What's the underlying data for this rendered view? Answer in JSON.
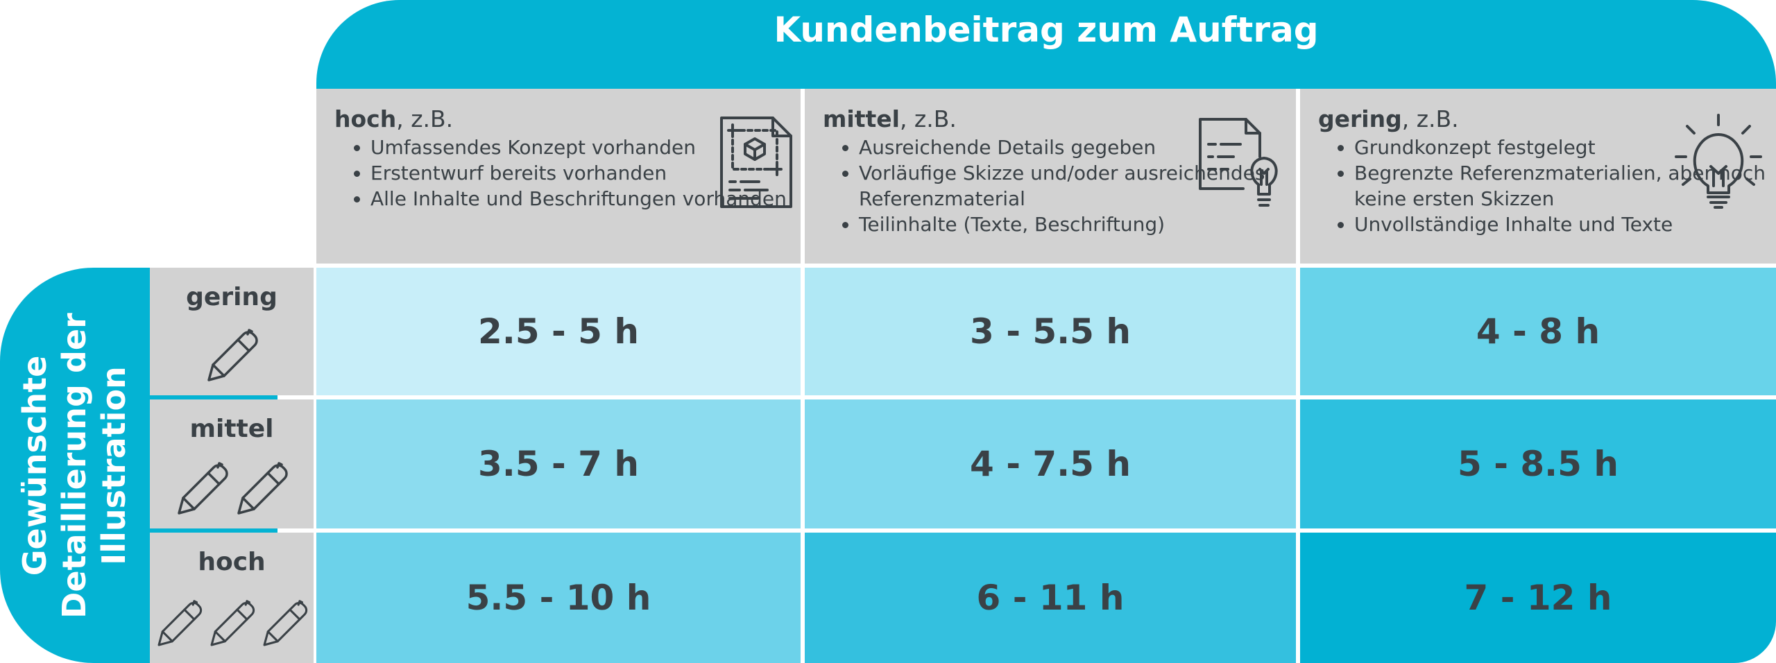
{
  "header": {
    "title": "Kundenbeitrag zum Auftrag"
  },
  "columns": [
    {
      "level": "hoch",
      "suffix": ", z.B.",
      "items": [
        "Umfassendes Konzept vorhanden",
        "Erstentwurf bereits vorhanden",
        "Alle Inhalte und Beschriftungen vorhanden"
      ],
      "icon": "blueprint-document-icon"
    },
    {
      "level": "mittel",
      "suffix": ", z.B.",
      "items": [
        "Ausreichende Details gegeben",
        "Vorläufige Skizze und/oder ausreichendes Referenzmaterial",
        "Teilinhalte (Texte, Beschriftung)"
      ],
      "icon": "document-lightbulb-icon"
    },
    {
      "level": "gering",
      "suffix": ", z.B.",
      "items": [
        "Grundkonzept festgelegt",
        "Begrenzte Referenzmaterialien, aber noch keine ersten Skizzen",
        "Unvollständige Inhalte und Texte"
      ],
      "icon": "lightbulb-icon"
    }
  ],
  "side_label": {
    "line1": "Gewünschte",
    "line2": "Detaillierung der",
    "line3": "Illustration"
  },
  "rows": [
    {
      "label": "gering",
      "pencils": 1,
      "icon": "pencil-icon"
    },
    {
      "label": "mittel",
      "pencils": 2,
      "icon": "pencil-icon"
    },
    {
      "label": "hoch",
      "pencils": 3,
      "icon": "pencil-icon"
    }
  ],
  "cells": [
    [
      "2.5 - 5 h",
      "3 - 5.5 h",
      "4 - 8 h"
    ],
    [
      "3.5 - 7 h",
      "4 - 7.5 h",
      "5 - 8.5 h"
    ],
    [
      "5.5 - 10 h",
      "6 - 11 h",
      "7 - 12 h"
    ]
  ],
  "colors": {
    "header": "#04b3d3",
    "gray": "#d2d2d2",
    "text": "#3a4146",
    "cells": [
      [
        "#c8eef9",
        "#b0e8f5",
        "#68d3ea"
      ],
      [
        "#8cdcef",
        "#80d9ee",
        "#2dc0df"
      ],
      [
        "#6cd2ea",
        "#34c0df",
        "#02b1d3"
      ]
    ]
  }
}
